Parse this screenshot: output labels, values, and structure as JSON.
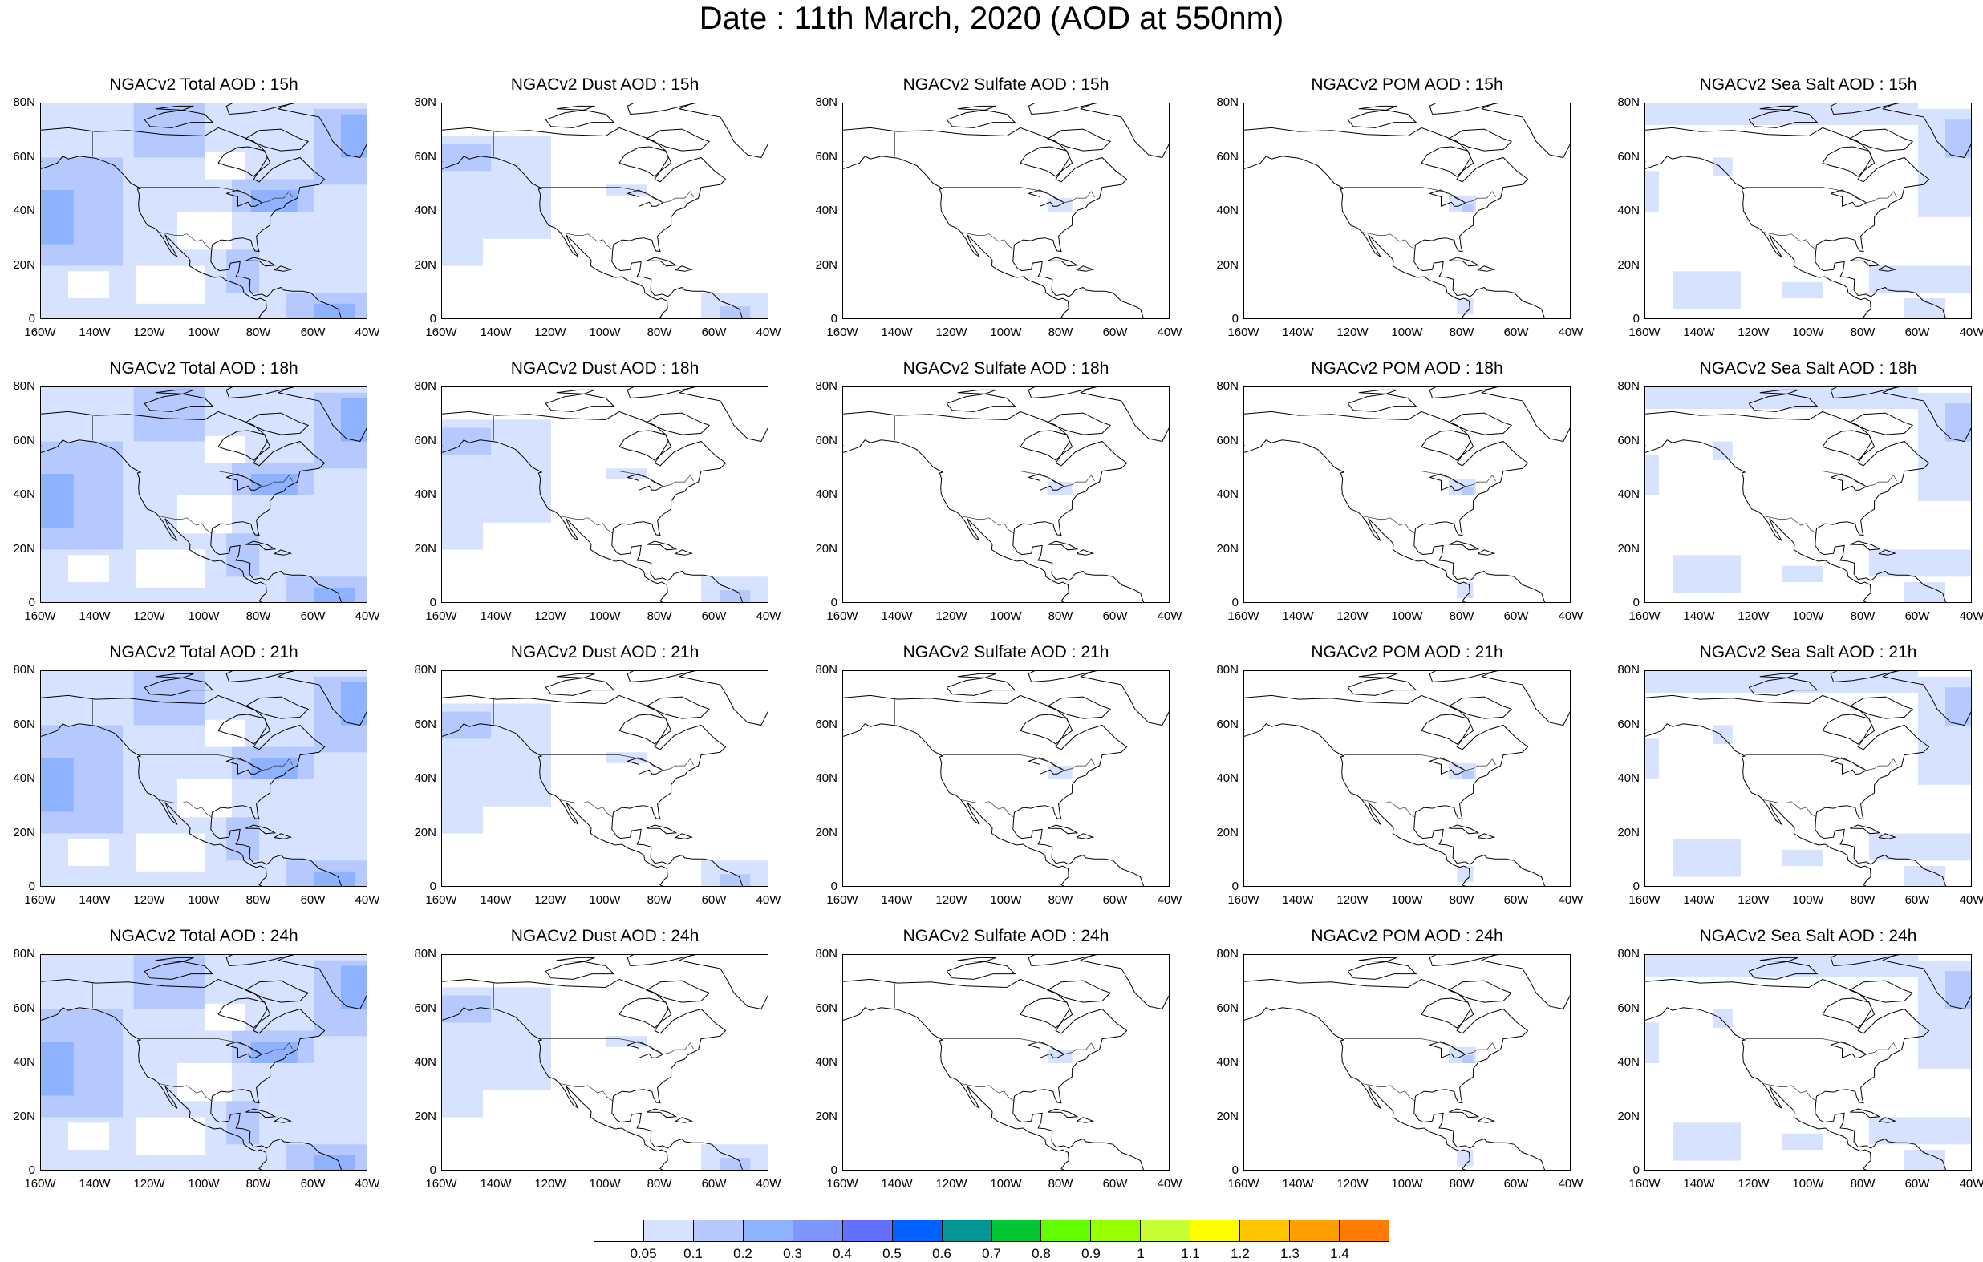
{
  "title": "Date : 11th March, 2020 (AOD at 550nm)",
  "panels": [
    [
      "NGACv2 Total AOD : 15h",
      "NGACv2 Dust AOD : 15h",
      "NGACv2 Sulfate AOD : 15h",
      "NGACv2 POM AOD : 15h",
      "NGACv2 Sea Salt AOD : 15h"
    ],
    [
      "NGACv2 Total AOD : 18h",
      "NGACv2 Dust AOD : 18h",
      "NGACv2 Sulfate AOD : 18h",
      "NGACv2 POM AOD : 18h",
      "NGACv2 Sea Salt AOD : 18h"
    ],
    [
      "NGACv2 Total AOD : 21h",
      "NGACv2 Dust AOD : 21h",
      "NGACv2 Sulfate AOD : 21h",
      "NGACv2 POM AOD : 21h",
      "NGACv2 Sea Salt AOD : 21h"
    ],
    [
      "NGACv2 Total AOD : 24h",
      "NGACv2 Dust AOD : 24h",
      "NGACv2 Sulfate AOD : 24h",
      "NGACv2 POM AOD : 24h",
      "NGACv2 Sea Salt  AOD : 24h"
    ]
  ],
  "lat_ticks": [
    "80N",
    "60N",
    "40N",
    "20N",
    "0"
  ],
  "lon_ticks": [
    "160W",
    "140W",
    "120W",
    "100W",
    "80W",
    "60W",
    "40W"
  ],
  "colorbar": {
    "labels": [
      "0.05",
      "0.1",
      "0.2",
      "0.3",
      "0.4",
      "0.5",
      "0.6",
      "0.7",
      "0.8",
      "0.9",
      "1",
      "1.1",
      "1.2",
      "1.3",
      "1.4"
    ],
    "colors": [
      "#ffffff",
      "#d6e2ff",
      "#b5c9ff",
      "#8eb2ff",
      "#7f96ff",
      "#6370ff",
      "#0063ff",
      "#009696",
      "#00c633",
      "#63ff00",
      "#96ff00",
      "#c6ff33",
      "#ffff00",
      "#ffc600",
      "#ffa000",
      "#ff7c00",
      "#ff1900"
    ]
  }
}
